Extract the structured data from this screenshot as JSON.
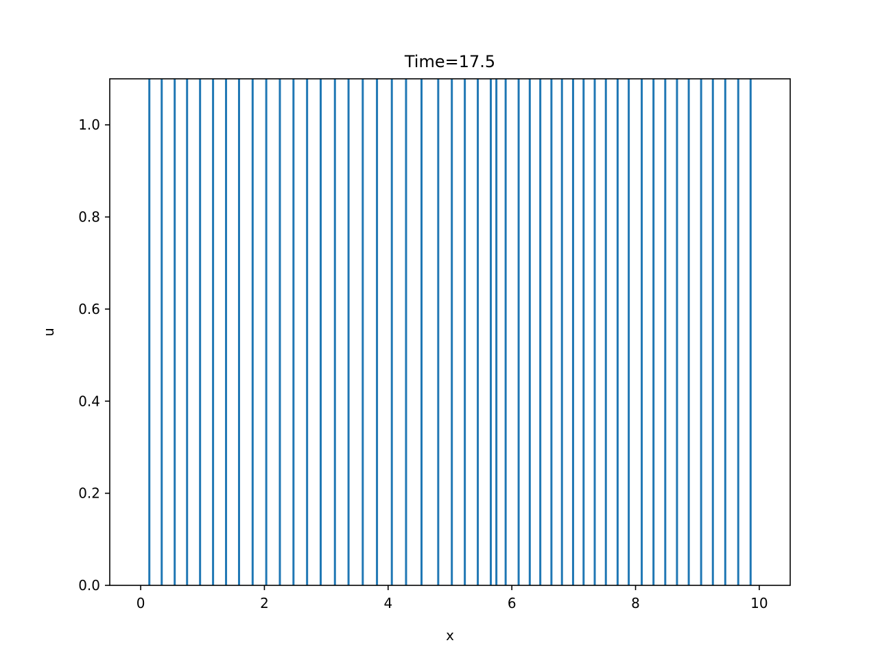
{
  "chart_data": {
    "type": "line",
    "title": "Time=17.5",
    "xlabel": "x",
    "ylabel": "u",
    "xlim": [
      -0.5,
      10.5
    ],
    "ylim": [
      0.0,
      1.1
    ],
    "xticks": [
      0,
      2,
      4,
      6,
      8,
      10
    ],
    "xtick_labels": [
      "0",
      "2",
      "4",
      "6",
      "8",
      "10"
    ],
    "yticks": [
      0.0,
      0.2,
      0.4,
      0.6,
      0.8,
      1.0
    ],
    "ytick_labels": [
      "0.0",
      "0.2",
      "0.4",
      "0.6",
      "0.8",
      "1.0"
    ],
    "grid": false,
    "series_color": "#1f77b4",
    "spikes_x": [
      0.14,
      0.34,
      0.55,
      0.75,
      0.96,
      1.17,
      1.38,
      1.59,
      1.81,
      2.03,
      2.25,
      2.47,
      2.69,
      2.91,
      3.14,
      3.36,
      3.59,
      3.82,
      4.06,
      4.29,
      4.54,
      4.81,
      5.03,
      5.24,
      5.45,
      5.66,
      5.75,
      5.9,
      6.11,
      6.29,
      6.46,
      6.64,
      6.81,
      6.99,
      7.16,
      7.34,
      7.52,
      7.71,
      7.89,
      8.1,
      8.29,
      8.48,
      8.67,
      8.86,
      9.06,
      9.25,
      9.45,
      9.66,
      9.86
    ],
    "spike_top": 1.1
  }
}
